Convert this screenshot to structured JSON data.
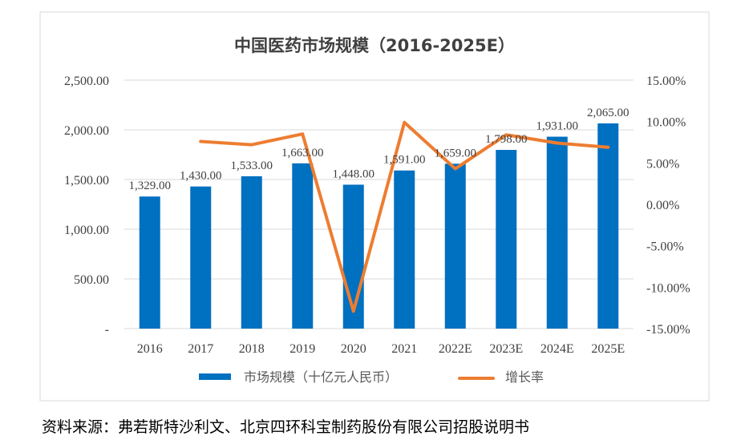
{
  "chart_data": {
    "type": "bar+line",
    "title": "中国医药市场规模（2016-2025E）",
    "categories": [
      "2016",
      "2017",
      "2018",
      "2019",
      "2020",
      "2021",
      "2022E",
      "2023E",
      "2024E",
      "2025E"
    ],
    "series": [
      {
        "name": "市场规模（十亿元人民币）",
        "type": "bar",
        "axis": "left",
        "color": "#0070C0",
        "values": [
          1329,
          1430,
          1533,
          1663,
          1448,
          1591,
          1659,
          1798,
          1931,
          2065
        ],
        "labels": [
          "1,329.00",
          "1,430.00",
          "1,533.00",
          "1,663.00",
          "1,448.00",
          "1,591.00",
          "1,659.00",
          "1,798.00",
          "1,931.00",
          "2,065.00"
        ]
      },
      {
        "name": "增长率",
        "type": "line",
        "axis": "right",
        "color": "#ED7D31",
        "values": [
          null,
          7.6,
          7.2,
          8.5,
          -12.9,
          9.9,
          4.3,
          8.4,
          7.4,
          6.9
        ]
      }
    ],
    "left_axis": {
      "ylim": [
        0,
        2500
      ],
      "ticks": [
        0,
        500,
        1000,
        1500,
        2000,
        2500
      ],
      "tick_labels": [
        "-",
        "500.00",
        "1,000.00",
        "1,500.00",
        "2,000.00",
        "2,500.00"
      ]
    },
    "right_axis": {
      "ylim": [
        -15,
        15
      ],
      "ticks": [
        -15,
        -10,
        -5,
        0,
        5,
        10,
        15
      ],
      "tick_labels": [
        "-15.00%",
        "-10.00%",
        "-5.00%",
        "0.00%",
        "5.00%",
        "10.00%",
        "15.00%"
      ]
    },
    "grid": true,
    "legend_position": "bottom"
  },
  "source_note": "资料来源：弗若斯特沙利文、北京四环科宝制药股份有限公司招股说明书"
}
